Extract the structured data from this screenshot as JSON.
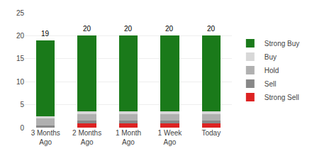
{
  "chart_data": {
    "type": "bar",
    "stacked": true,
    "categories": [
      "3 Months\nAgo",
      "2 Months\nAgo",
      "1 Month\nAgo",
      "1 Week\nAgo",
      "Today"
    ],
    "series": [
      {
        "name": "Strong Sell",
        "color": "#dd2222",
        "values": [
          0.0,
          1.0,
          1.0,
          1.0,
          1.0
        ]
      },
      {
        "name": "Sell",
        "color": "#888888",
        "values": [
          0.5,
          0.5,
          0.5,
          0.5,
          0.5
        ]
      },
      {
        "name": "Hold",
        "color": "#b0b0b0",
        "values": [
          1.5,
          1.5,
          1.5,
          1.5,
          1.5
        ]
      },
      {
        "name": "Buy",
        "color": "#d8d8d8",
        "values": [
          0.5,
          0.5,
          0.5,
          0.5,
          0.5
        ]
      },
      {
        "name": "Strong Buy",
        "color": "#1a7a1a",
        "values": [
          16.5,
          16.5,
          16.5,
          16.5,
          16.5
        ]
      }
    ],
    "totals": [
      19,
      20,
      20,
      20,
      20
    ],
    "ylim": [
      0,
      25
    ],
    "yticks": [
      0,
      5,
      10,
      15,
      20,
      25
    ],
    "grid": true,
    "legend": "right"
  }
}
